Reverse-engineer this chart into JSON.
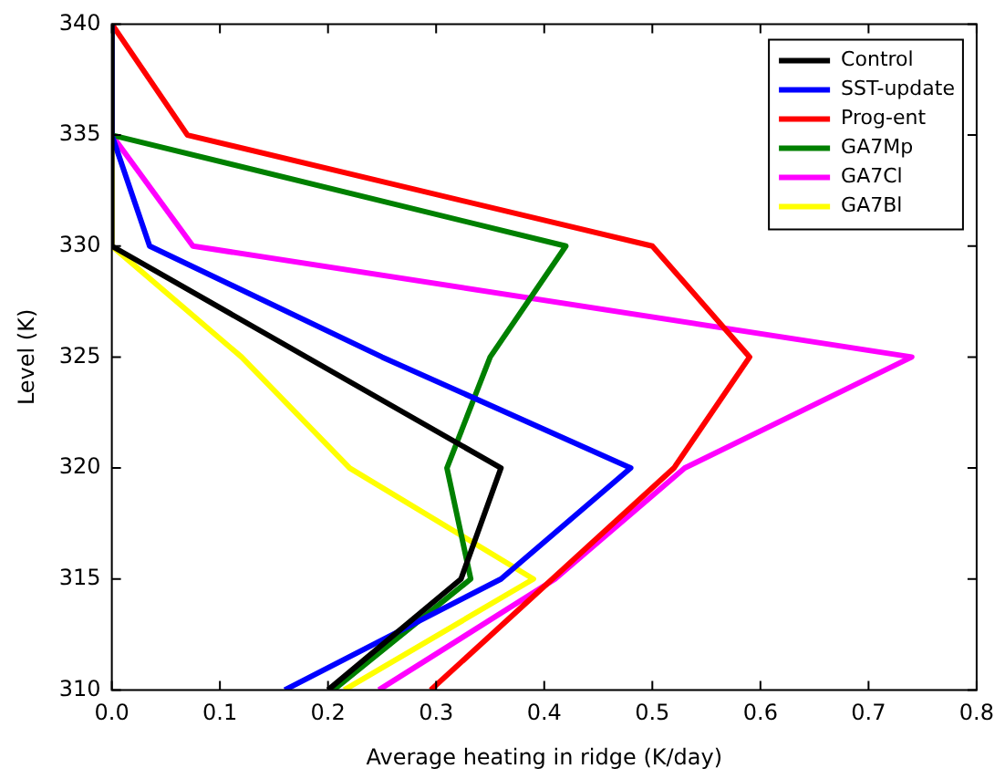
{
  "chart_data": {
    "type": "line",
    "xlabel": "Average heating in ridge (K/day)",
    "ylabel": "Level (K)",
    "xlim": [
      0,
      0.8
    ],
    "xticks": [
      {
        "value": 0,
        "label": "0.0"
      },
      {
        "value": 0.1,
        "label": "0.1"
      },
      {
        "value": 0.2,
        "label": "0.2"
      },
      {
        "value": 0.3,
        "label": "0.3"
      },
      {
        "value": 0.4,
        "label": "0.4"
      },
      {
        "value": 0.5,
        "label": "0.5"
      },
      {
        "value": 0.6,
        "label": "0.6"
      },
      {
        "value": 0.7,
        "label": "0.7"
      },
      {
        "value": 0.8,
        "label": "0.8"
      }
    ],
    "ylim": [
      310,
      340
    ],
    "yticks": [
      310,
      315,
      320,
      325,
      330,
      335,
      340
    ],
    "grid": false,
    "legend": "top right",
    "marker": "none",
    "line_style": "solid",
    "series": [
      {
        "name": "Control",
        "color": "#000000",
        "x": [
          0,
          0,
          0.36,
          0.323,
          0.2
        ],
        "values": [
          340,
          330,
          320,
          315,
          310
        ]
      },
      {
        "name": "SST-update",
        "color": "#0000ff",
        "x": [
          0,
          0,
          0.035,
          0.25,
          0.48,
          0.36,
          0.16
        ],
        "values": [
          340,
          335,
          330,
          325,
          320,
          315,
          310
        ]
      },
      {
        "name": "Prog-ent",
        "color": "#ff0000",
        "x": [
          0,
          0.07,
          0.5,
          0.59,
          0.52,
          0.295
        ],
        "values": [
          340,
          335,
          330,
          325,
          320,
          310
        ]
      },
      {
        "name": "GA7Mp",
        "color": "#008000",
        "x": [
          0,
          0,
          0.42,
          0.35,
          0.31,
          0.332,
          0.205
        ],
        "values": [
          340,
          335,
          330,
          325,
          320,
          315,
          310
        ]
      },
      {
        "name": "GA7Cl",
        "color": "#ff00ff",
        "x": [
          0,
          0,
          0.075,
          0.74,
          0.53,
          0.41,
          0.247
        ],
        "values": [
          340,
          335,
          330,
          325,
          320,
          315,
          310
        ]
      },
      {
        "name": "GA7Bl",
        "color": "#ffff00",
        "x": [
          0,
          0,
          0.12,
          0.22,
          0.39,
          0.215
        ],
        "values": [
          340,
          330,
          325,
          320,
          315,
          310
        ]
      }
    ]
  }
}
